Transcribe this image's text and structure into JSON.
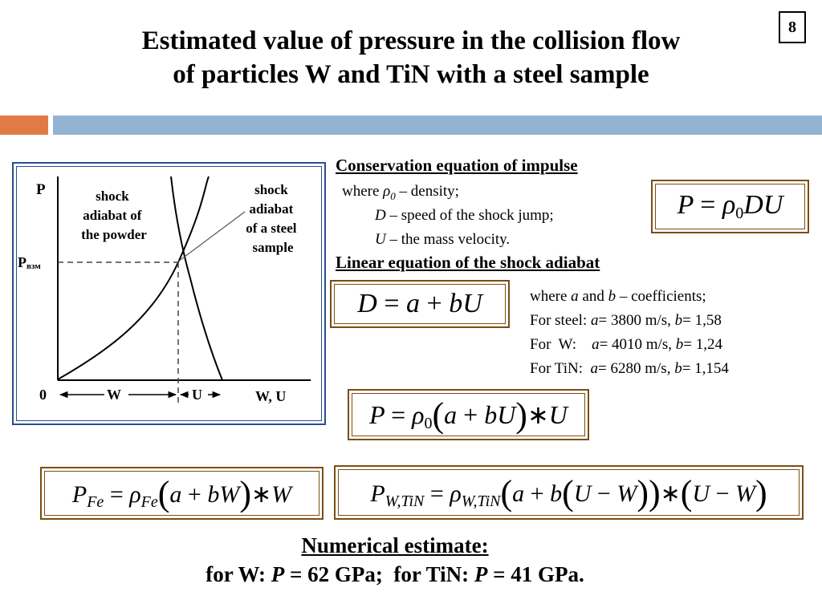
{
  "slide_number": "8",
  "title": {
    "line1": "Estimated value of pressure in the collision flow",
    "line2": "of particles W and TiN with a steel sample"
  },
  "colors": {
    "accent_orange": "#e07b45",
    "accent_blue": "#93b3d3",
    "frame_blue": "#2a4f8e",
    "box_brown": "#7a4e15"
  },
  "diagram": {
    "axis_y_label": "P",
    "axis_x_label": "W, U",
    "origin_label": "0",
    "p_label": "P",
    "p_label_sub": "взм",
    "powder_label": [
      "shock",
      "adiabat of",
      "the powder"
    ],
    "steel_label": [
      "shock",
      "adiabat",
      "of a steel",
      "sample"
    ],
    "w_segment_label": "W",
    "u_segment_label": "U"
  },
  "impulse": {
    "heading": "Conservation equation of impulse",
    "where_prefix": "where ",
    "rho_symbol": "ρ",
    "rho_sub": "0",
    "rho_desc": " – density;",
    "d_symbol": "D",
    "d_desc": " – speed of the shock jump;",
    "u_symbol": "U",
    "u_desc": " – the mass velocity."
  },
  "adiabat": {
    "heading": "Linear equation of the shock adiabat",
    "coef_where": "where ",
    "coef_a": "a",
    "coef_and": " and ",
    "coef_b": "b",
    "coef_desc": " – coefficients;",
    "rows": [
      {
        "prefix": "For steel: ",
        "a_value": "= 3800 m/s, ",
        "b_value": "= 1,58"
      },
      {
        "prefix": "For  W:    ",
        "a_value": "= 4010 m/s, ",
        "b_value": "= 1,24"
      },
      {
        "prefix": "For TiN:  ",
        "a_value": "= 6280 m/s, ",
        "b_value": "= 1,154"
      }
    ]
  },
  "estimate": {
    "heading": "Numerical estimate:",
    "for_w": "for W: ",
    "p_symbol": "P",
    "w_value": " = 62 GPa;  ",
    "for_tin": "for TiN: ",
    "tin_value": " = 41 GPa."
  }
}
